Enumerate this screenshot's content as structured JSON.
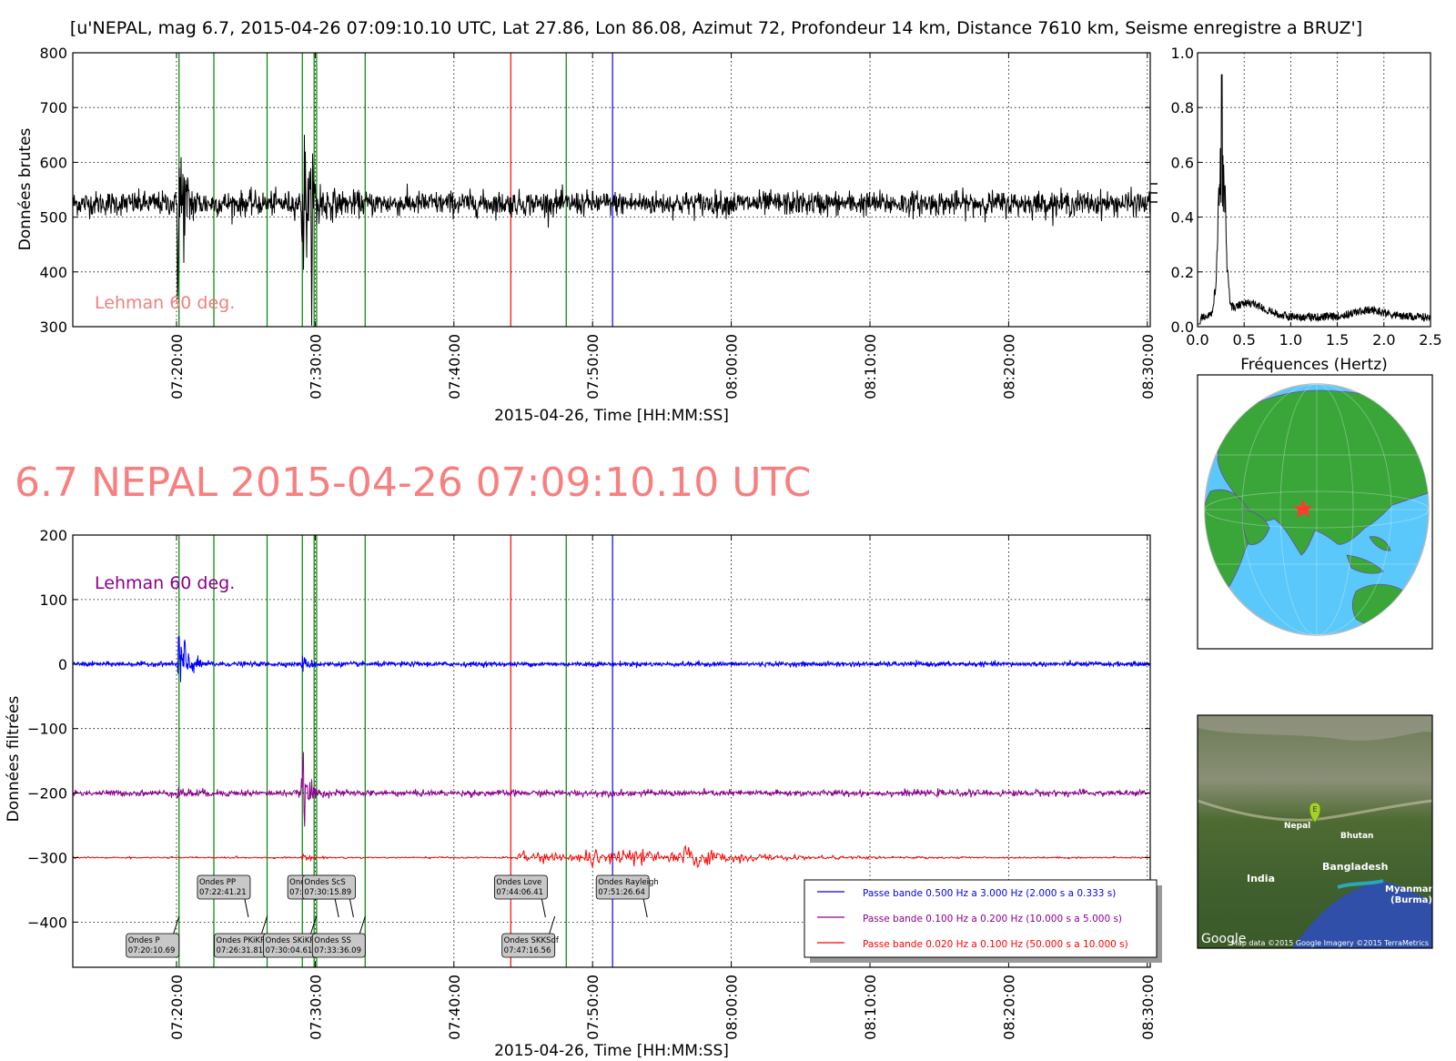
{
  "suptitle": "[u'NEPAL, mag 6.7, 2015-04-26 07:09:10.10 UTC, Lat 27.86, Lon 86.08, Azimut  72, Profondeur 14 km, Distance  7610 km, Seisme enregistre a BRUZ']",
  "big_title": "6.7 NEPAL 2015-04-26 07:09:10.10 UTC",
  "big_title_color": "#f77f7f",
  "time_ticks": [
    "07:20:00",
    "07:30:00",
    "07:40:00",
    "07:50:00",
    "08:00:00",
    "08:10:00",
    "08:20:00",
    "08:30:00"
  ],
  "phase_lines": {
    "green_minutes": [
      0.18,
      2.69,
      6.53,
      9.07,
      9.92,
      10.1,
      13.6,
      28.1
    ],
    "red_minutes": [
      24.1
    ],
    "blue_minutes": [
      31.44
    ],
    "colors": {
      "green": "#008000",
      "red": "#ff0000",
      "blue": "#0000ff"
    }
  },
  "chart_data": [
    {
      "type": "line",
      "title": "",
      "xlabel": "2015-04-26, Time [HH:MM:SS]",
      "ylabel": "Données brutes",
      "xlim": [
        "07:13:10",
        "08:30:20"
      ],
      "ylim": [
        300,
        800
      ],
      "yticks": [
        "800",
        "700",
        "600",
        "500",
        "400",
        "300"
      ],
      "annotation": "Lehman 60 deg.",
      "annotation_color": "#f08080",
      "series": [
        {
          "baseline": 525,
          "color": "#000000"
        }
      ],
      "grid": true
    },
    {
      "type": "line",
      "title": "",
      "xlabel": "Fréquences (Hertz)",
      "ylabel": "",
      "xlim": [
        0.0,
        2.5
      ],
      "ylim": [
        0.0,
        1.0
      ],
      "xticks": [
        "0.0",
        "0.5",
        "1.0",
        "1.5",
        "2.0",
        "2.5"
      ],
      "yticks": [
        "1.0",
        "0.8",
        "0.6",
        "0.4",
        "0.2",
        "0.0"
      ],
      "peak": {
        "x": 0.26,
        "y": 0.92
      },
      "series": [
        {
          "color": "#000000"
        }
      ],
      "grid": true
    },
    {
      "type": "line",
      "title": "",
      "xlabel": "2015-04-26, Time [HH:MM:SS]",
      "ylabel": "Données filtrées",
      "xlim": [
        "07:13:10",
        "08:30:20"
      ],
      "ylim": [
        -470,
        200
      ],
      "yticks": [
        "200",
        "100",
        "0",
        "−100",
        "−200",
        "−300",
        "−400"
      ],
      "annotation": "Lehman 60 deg.",
      "annotation_color": "#8b008b",
      "series": [
        {
          "name": "Passe bande 0.500 Hz a 3.000 Hz (2.000 s a 0.333 s)",
          "color": "#0000ff",
          "offset": 0
        },
        {
          "name": "Passe bande 0.100 Hz a 0.200 Hz (10.000 s a 5.000 s)",
          "color": "#8b008b",
          "offset": -200
        },
        {
          "name": "Passe bande 0.020 Hz a 0.100 Hz (50.000 s a 10.000 s)",
          "color": "#ff0000",
          "offset": -300
        }
      ],
      "phase_labels": [
        {
          "name": "Ondes P",
          "time": "07:20:10.69"
        },
        {
          "name": "Ondes PP",
          "time": "07:22:41.21"
        },
        {
          "name": "Ondes PKiKP",
          "time": "07:26:31.81"
        },
        {
          "name": "Ondes S",
          "time": "07:29:11.86"
        },
        {
          "name": "Ondes SKiKP",
          "time": "07:30:04.61"
        },
        {
          "name": "Ondes ScS",
          "time": "07:30:15.89"
        },
        {
          "name": "Ondes SS",
          "time": "07:33:36.09"
        },
        {
          "name": "Ondes Love",
          "time": "07:44:06.41"
        },
        {
          "name": "Ondes SKKSdf",
          "time": "07:47:16.56"
        },
        {
          "name": "Ondes Rayleigh",
          "time": "07:51:26.64"
        }
      ],
      "grid": true
    }
  ],
  "globe": {
    "ocean_color": "#5ac8fa",
    "land_color": "#3aa63a",
    "epicenter_color": "#ff3b30"
  },
  "satellite_map": {
    "labels": [
      "Nepal",
      "Bhutan",
      "Bangladesh",
      "India",
      "Myanmar",
      "(Burma)"
    ],
    "marker_letter": "E",
    "logo": "Google",
    "credit": "Map data ©2015 Google  Imagery ©2015 TerraMetrics"
  }
}
